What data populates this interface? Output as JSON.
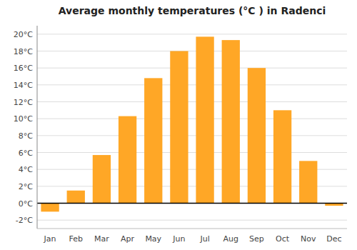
{
  "chart_data": {
    "type": "bar",
    "title": "Average monthly temperatures (°C ) in Radenci",
    "categories": [
      "Jan",
      "Feb",
      "Mar",
      "Apr",
      "May",
      "Jun",
      "Jul",
      "Aug",
      "Sep",
      "Oct",
      "Nov",
      "Dec"
    ],
    "values": [
      -1.0,
      1.5,
      5.7,
      10.3,
      14.8,
      18.0,
      19.7,
      19.3,
      16.0,
      11.0,
      5.0,
      -0.3
    ],
    "color": "#FFA726",
    "ylim": [
      -3,
      21
    ],
    "yticks": [
      {
        "value": -2,
        "label": "-2°C"
      },
      {
        "value": 0,
        "label": "0°C"
      },
      {
        "value": 2,
        "label": "2°C"
      },
      {
        "value": 4,
        "label": "4°C"
      },
      {
        "value": 6,
        "label": "6°C"
      },
      {
        "value": 8,
        "label": "8°C"
      },
      {
        "value": 10,
        "label": "10°C"
      },
      {
        "value": 12,
        "label": "12°C"
      },
      {
        "value": 14,
        "label": "14°C"
      },
      {
        "value": 16,
        "label": "16°C"
      },
      {
        "value": 18,
        "label": "18°C"
      },
      {
        "value": 20,
        "label": "20°C"
      }
    ],
    "grid": true
  }
}
